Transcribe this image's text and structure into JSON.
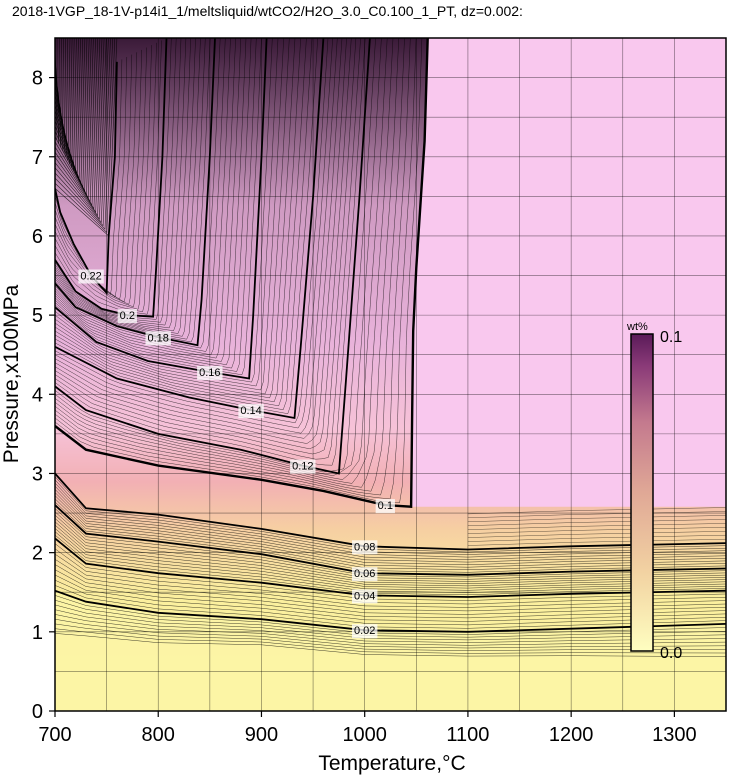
{
  "chart_data": {
    "type": "contour",
    "title": "2018-1VGP_18-1V-p14i1_1/meltsliquid/wtCO2/H2O_3.0_C0.100_1_PT, dz=0.002:",
    "xlabel": "Temperature,°C",
    "ylabel": "Pressure,x100MPa",
    "xlim": [
      700,
      1350
    ],
    "ylim": [
      0,
      8.5
    ],
    "xticks": [
      "700",
      "800",
      "900",
      "1000",
      "1100",
      "1200",
      "1300"
    ],
    "yticks": [
      "0",
      "1",
      "2",
      "3",
      "4",
      "5",
      "6",
      "7",
      "8"
    ],
    "grid": true,
    "colorbar": {
      "label": "wt%",
      "min_label": "0.0",
      "max_label": "0.1",
      "colors": [
        "#fefec0",
        "#f2d4a2",
        "#e0a896",
        "#c47a8e",
        "#8a3a78",
        "#5a1a58"
      ]
    },
    "background_colors": {
      "low": "#fbf5a6",
      "high": "#f9c8ee"
    },
    "major_contours": [
      {
        "level": "0.02",
        "points": [
          [
            700,
            1.52
          ],
          [
            730,
            1.38
          ],
          [
            800,
            1.24
          ],
          [
            900,
            1.16
          ],
          [
            1000,
            1.02
          ],
          [
            1100,
            1.0
          ],
          [
            1200,
            1.04
          ],
          [
            1350,
            1.1
          ]
        ]
      },
      {
        "level": "0.04",
        "points": [
          [
            700,
            2.18
          ],
          [
            730,
            1.86
          ],
          [
            800,
            1.74
          ],
          [
            900,
            1.62
          ],
          [
            1000,
            1.46
          ],
          [
            1100,
            1.44
          ],
          [
            1200,
            1.48
          ],
          [
            1350,
            1.52
          ]
        ]
      },
      {
        "level": "0.06",
        "points": [
          [
            700,
            2.6
          ],
          [
            730,
            2.24
          ],
          [
            800,
            2.14
          ],
          [
            900,
            1.98
          ],
          [
            1000,
            1.74
          ],
          [
            1100,
            1.72
          ],
          [
            1200,
            1.76
          ],
          [
            1350,
            1.8
          ]
        ]
      },
      {
        "level": "0.08",
        "points": [
          [
            700,
            3.0
          ],
          [
            730,
            2.56
          ],
          [
            800,
            2.48
          ],
          [
            900,
            2.3
          ],
          [
            1000,
            2.08
          ],
          [
            1100,
            2.04
          ],
          [
            1200,
            2.08
          ],
          [
            1350,
            2.12
          ]
        ]
      },
      {
        "level": "0.1",
        "points": [
          [
            1061,
            8.5
          ],
          [
            1058,
            7.2
          ],
          [
            1050,
            5.6
          ],
          [
            1047,
            4.8
          ],
          [
            1046,
            3.8
          ],
          [
            1045,
            2.58
          ],
          [
            1020,
            2.6
          ],
          [
            960,
            2.78
          ],
          [
            900,
            2.92
          ],
          [
            800,
            3.1
          ],
          [
            730,
            3.3
          ],
          [
            700,
            3.6
          ]
        ]
      },
      {
        "level": "0.12",
        "points": [
          [
            1005,
            8.5
          ],
          [
            995,
            6.5
          ],
          [
            982,
            4.2
          ],
          [
            975,
            3.0
          ],
          [
            940,
            3.1
          ],
          [
            880,
            3.3
          ],
          [
            800,
            3.5
          ],
          [
            730,
            3.8
          ],
          [
            700,
            4.1
          ]
        ]
      },
      {
        "level": "0.14",
        "points": [
          [
            960,
            8.5
          ],
          [
            950,
            6.5
          ],
          [
            938,
            4.6
          ],
          [
            932,
            3.7
          ],
          [
            890,
            3.8
          ],
          [
            830,
            3.96
          ],
          [
            760,
            4.2
          ],
          [
            700,
            4.6
          ]
        ]
      },
      {
        "level": "0.16",
        "points": [
          [
            905,
            8.5
          ],
          [
            900,
            7.0
          ],
          [
            892,
            5.0
          ],
          [
            888,
            4.2
          ],
          [
            850,
            4.28
          ],
          [
            790,
            4.42
          ],
          [
            740,
            4.66
          ],
          [
            700,
            5.1
          ]
        ]
      },
      {
        "level": "0.18",
        "points": [
          [
            855,
            8.5
          ],
          [
            850,
            7.0
          ],
          [
            842,
            5.2
          ],
          [
            838,
            4.62
          ],
          [
            800,
            4.72
          ],
          [
            760,
            4.86
          ],
          [
            720,
            5.1
          ],
          [
            700,
            5.4
          ]
        ]
      },
      {
        "level": "0.2",
        "points": [
          [
            808,
            8.5
          ],
          [
            804,
            7.0
          ],
          [
            798,
            5.6
          ],
          [
            795,
            4.98
          ],
          [
            770,
            5.0
          ],
          [
            745,
            5.08
          ],
          [
            720,
            5.3
          ],
          [
            700,
            5.7
          ]
        ]
      },
      {
        "level": "0.22",
        "points": [
          [
            760,
            8.2
          ],
          [
            758,
            7.0
          ],
          [
            752,
            6.0
          ],
          [
            750,
            5.28
          ],
          [
            735,
            5.5
          ],
          [
            718,
            5.9
          ],
          [
            705,
            6.3
          ],
          [
            700,
            6.6
          ]
        ]
      }
    ]
  }
}
